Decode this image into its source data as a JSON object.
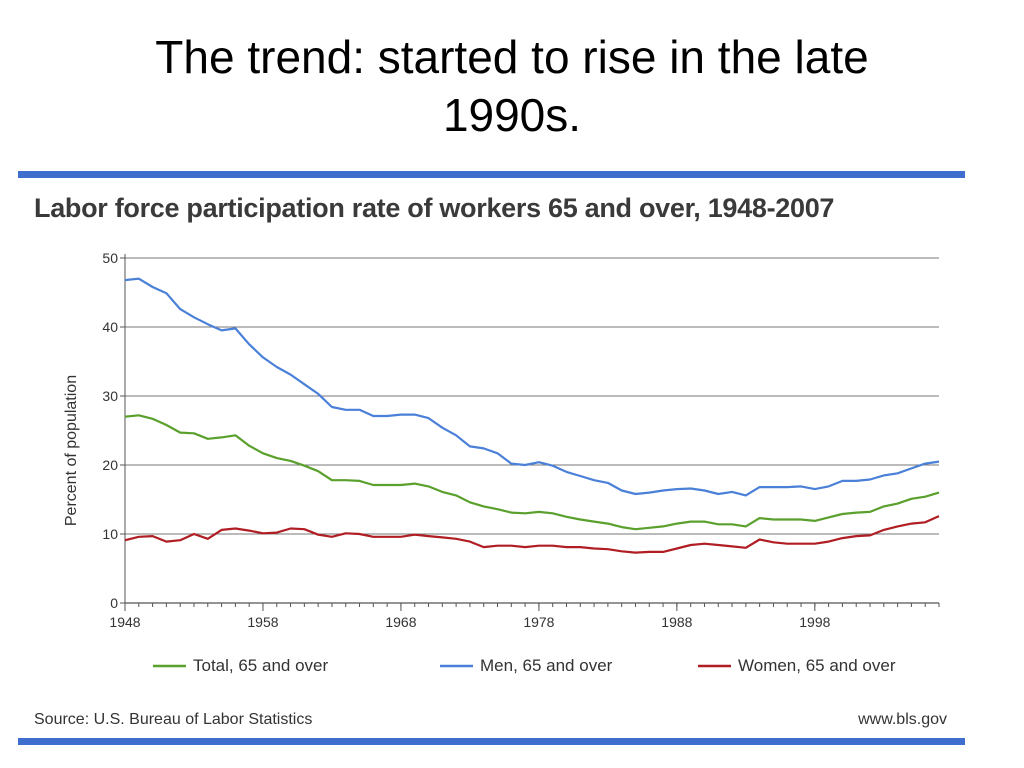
{
  "slide": {
    "title_line1": "The trend: started to rise in the late",
    "title_line2": "1990s."
  },
  "colors": {
    "rule": "#3f6fce",
    "grid": "#777777",
    "axis": "#555555",
    "total": "#5aa02c",
    "men": "#4a80d8",
    "women": "#b01e24"
  },
  "chart_data": {
    "type": "line",
    "title": "Labor force participation rate of workers 65 and over, 1948-2007",
    "xlabel": "",
    "ylabel": "Percent of population",
    "xlim": [
      1948,
      2007
    ],
    "ylim": [
      0,
      50
    ],
    "y_ticks": [
      0,
      10,
      20,
      30,
      40,
      50
    ],
    "x_ticks": [
      1948,
      1958,
      1968,
      1978,
      1988,
      1998
    ],
    "grid": true,
    "legend_position": "bottom",
    "x": [
      1948,
      1949,
      1950,
      1951,
      1952,
      1953,
      1954,
      1955,
      1956,
      1957,
      1958,
      1959,
      1960,
      1961,
      1962,
      1963,
      1964,
      1965,
      1966,
      1967,
      1968,
      1969,
      1970,
      1971,
      1972,
      1973,
      1974,
      1975,
      1976,
      1977,
      1978,
      1979,
      1980,
      1981,
      1982,
      1983,
      1984,
      1985,
      1986,
      1987,
      1988,
      1989,
      1990,
      1991,
      1992,
      1993,
      1994,
      1995,
      1996,
      1997,
      1998,
      1999,
      2000,
      2001,
      2002,
      2003,
      2004,
      2005,
      2006,
      2007
    ],
    "series": [
      {
        "name": "Total, 65 and over",
        "color_key": "total",
        "values": [
          27.0,
          27.2,
          26.7,
          25.8,
          24.7,
          24.6,
          23.8,
          24.0,
          24.3,
          22.8,
          21.7,
          21.0,
          20.6,
          19.9,
          19.1,
          17.8,
          17.8,
          17.7,
          17.1,
          17.1,
          17.1,
          17.3,
          16.9,
          16.1,
          15.6,
          14.6,
          14.0,
          13.6,
          13.1,
          13.0,
          13.2,
          13.0,
          12.5,
          12.1,
          11.8,
          11.5,
          11.0,
          10.7,
          10.9,
          11.1,
          11.5,
          11.8,
          11.8,
          11.4,
          11.4,
          11.1,
          12.3,
          12.1,
          12.1,
          12.1,
          11.9,
          12.4,
          12.9,
          13.1,
          13.2,
          14.0,
          14.4,
          15.1,
          15.4,
          16.0
        ]
      },
      {
        "name": "Men, 65 and over",
        "color_key": "men",
        "values": [
          46.8,
          47.0,
          45.8,
          44.9,
          42.6,
          41.4,
          40.4,
          39.5,
          39.8,
          37.5,
          35.6,
          34.2,
          33.1,
          31.7,
          30.3,
          28.4,
          28.0,
          28.0,
          27.1,
          27.1,
          27.3,
          27.3,
          26.8,
          25.4,
          24.3,
          22.7,
          22.4,
          21.7,
          20.2,
          20.0,
          20.4,
          19.9,
          19.0,
          18.4,
          17.8,
          17.4,
          16.3,
          15.8,
          16.0,
          16.3,
          16.5,
          16.6,
          16.3,
          15.8,
          16.1,
          15.6,
          16.8,
          16.8,
          16.8,
          16.9,
          16.5,
          16.9,
          17.7,
          17.7,
          17.9,
          18.5,
          18.8,
          19.5,
          20.2,
          20.5
        ]
      },
      {
        "name": "Women, 65 and over",
        "color_key": "women",
        "values": [
          9.1,
          9.6,
          9.7,
          8.9,
          9.1,
          10.0,
          9.3,
          10.6,
          10.8,
          10.5,
          10.1,
          10.2,
          10.8,
          10.7,
          9.9,
          9.6,
          10.1,
          10.0,
          9.6,
          9.6,
          9.6,
          9.9,
          9.7,
          9.5,
          9.3,
          8.9,
          8.1,
          8.3,
          8.3,
          8.1,
          8.3,
          8.3,
          8.1,
          8.1,
          7.9,
          7.8,
          7.5,
          7.3,
          7.4,
          7.4,
          7.9,
          8.4,
          8.6,
          8.4,
          8.2,
          8.0,
          9.2,
          8.8,
          8.6,
          8.6,
          8.6,
          8.9,
          9.4,
          9.7,
          9.8,
          10.6,
          11.1,
          11.5,
          11.7,
          12.6
        ]
      }
    ],
    "source": "Source: U.S. Bureau of Labor Statistics",
    "site": "www.bls.gov"
  }
}
